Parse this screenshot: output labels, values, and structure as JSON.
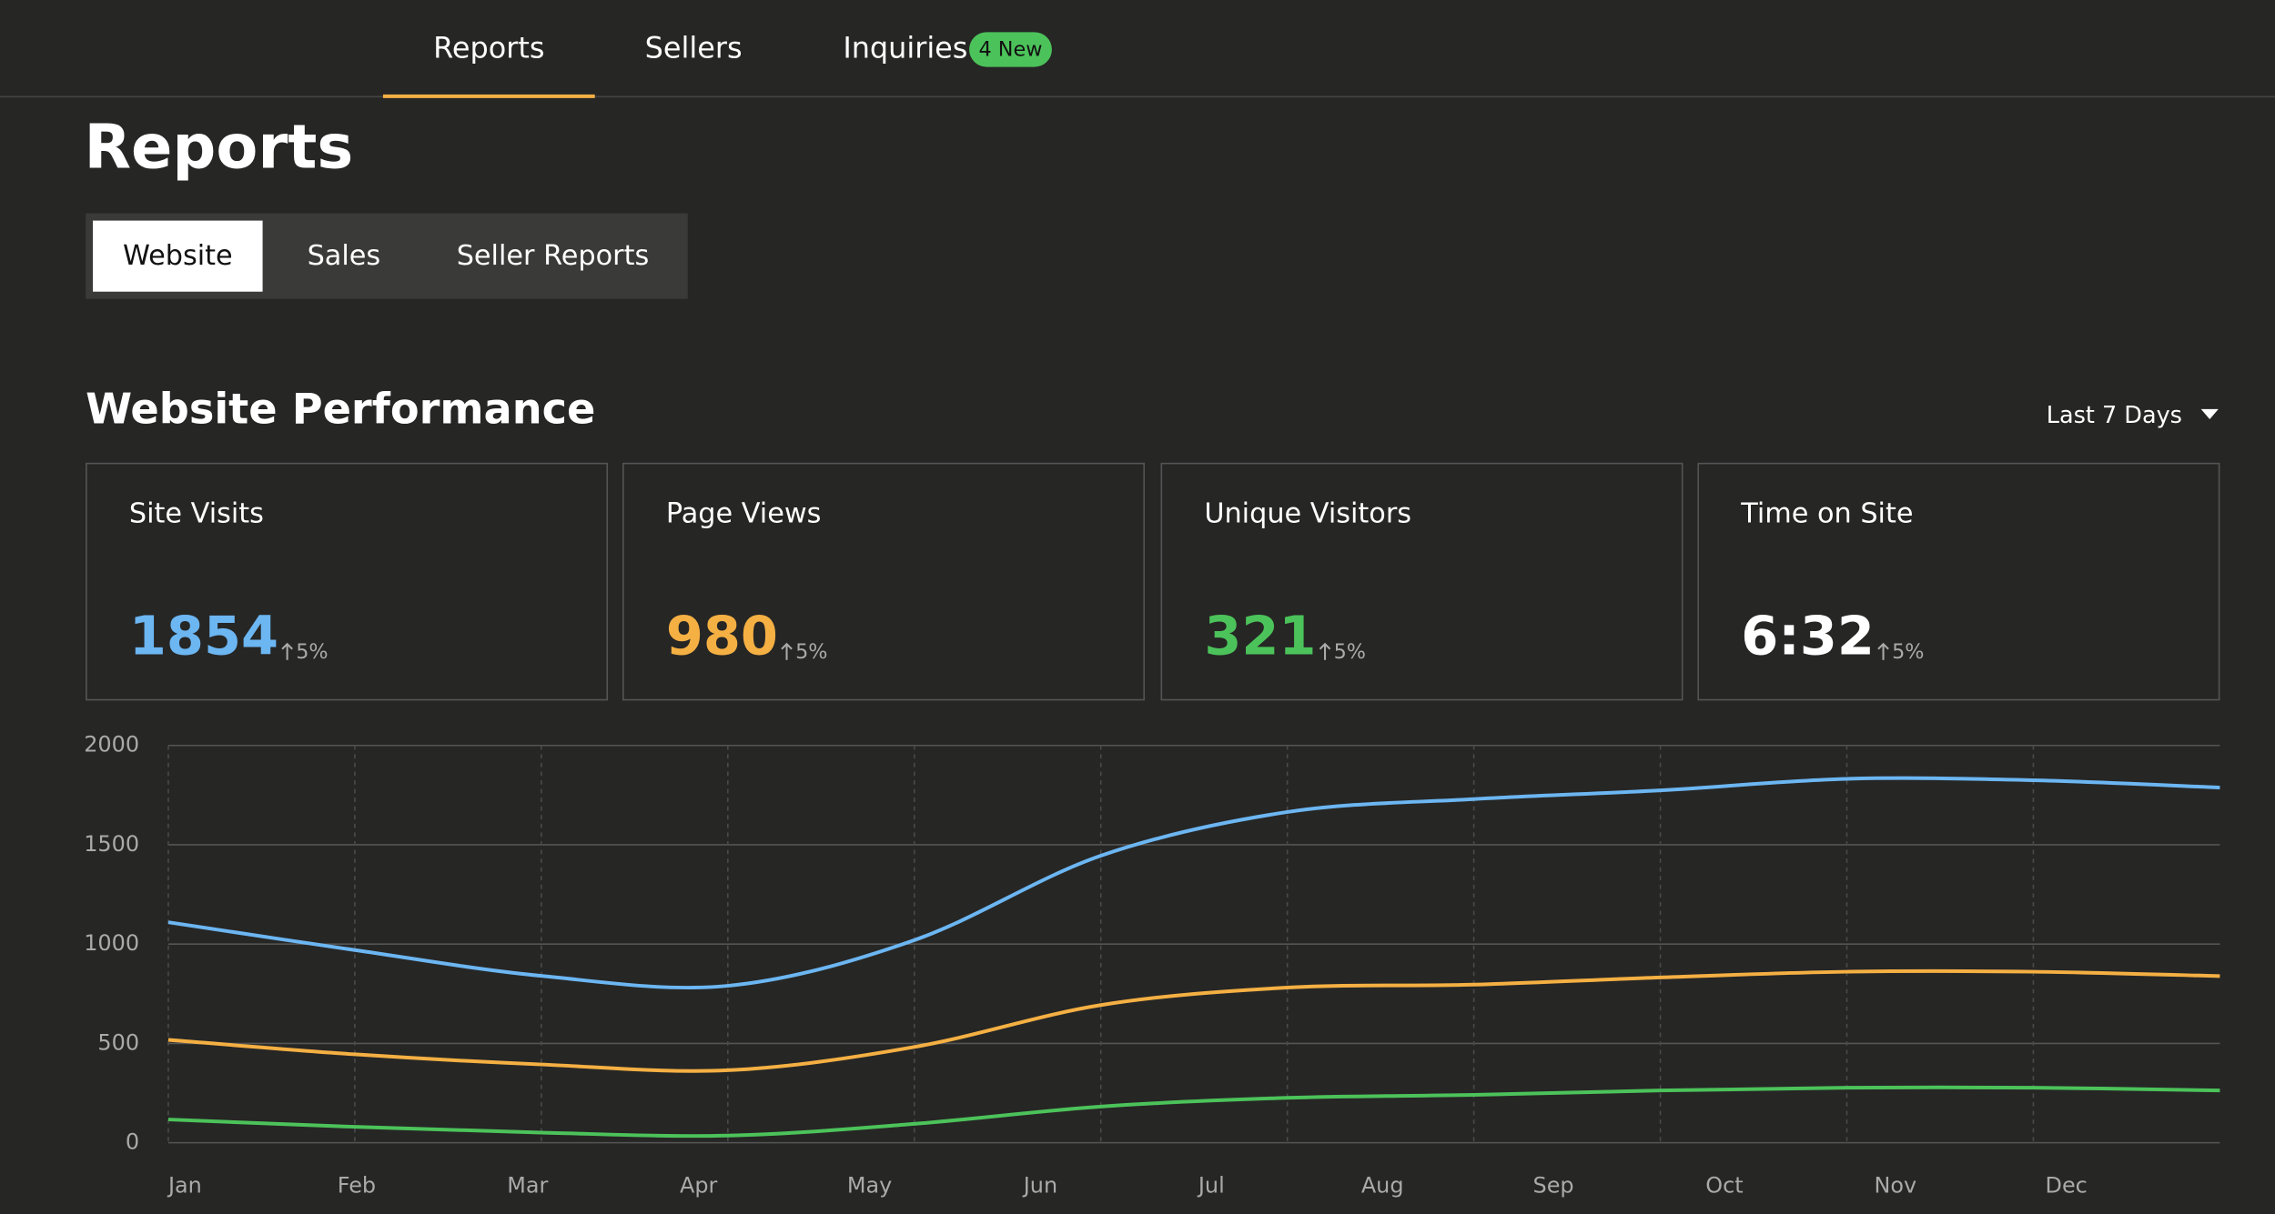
{
  "nav": {
    "items": [
      "Reports",
      "Sellers",
      "Inquiries"
    ],
    "badge": "4 New"
  },
  "header": {
    "title": "Reports"
  },
  "tabs": [
    "Website",
    "Sales",
    "Seller Reports"
  ],
  "section": {
    "title": "Website Performance",
    "range": "Last 7 Days"
  },
  "cards": [
    {
      "label": "Site Visits",
      "value": "1854",
      "change": "5%",
      "color": "#6cb6f2"
    },
    {
      "label": "Page Views",
      "value": "980",
      "change": "5%",
      "color": "#f5b043"
    },
    {
      "label": "Unique Visitors",
      "value": "321",
      "change": "5%",
      "color": "#4cc35a"
    },
    {
      "label": "Time on Site",
      "value": "6:32",
      "change": "5%",
      "color": "#ffffff"
    }
  ],
  "chart_data": {
    "type": "line",
    "categories": [
      "Jan",
      "Feb",
      "Mar",
      "Apr",
      "May",
      "Jun",
      "Jul",
      "Aug",
      "Sep",
      "Oct",
      "Nov",
      "Dec"
    ],
    "series": [
      {
        "color": "#6cb6f2",
        "values": [
          1110,
          970,
          840,
          790,
          1020,
          1445,
          1665,
          1730,
          1774,
          1832,
          1825,
          1788
        ]
      },
      {
        "color": "#f5b043",
        "values": [
          518,
          445,
          394,
          365,
          482,
          693,
          781,
          796,
          832,
          861,
          861,
          839
        ]
      },
      {
        "color": "#4cc35a",
        "values": [
          117,
          80,
          51,
          36,
          95,
          182,
          226,
          241,
          263,
          277,
          277,
          263
        ]
      }
    ],
    "ylim": [
      0,
      2000
    ],
    "yticks": [
      0,
      500,
      1000,
      1500,
      2000
    ],
    "grid": true
  }
}
